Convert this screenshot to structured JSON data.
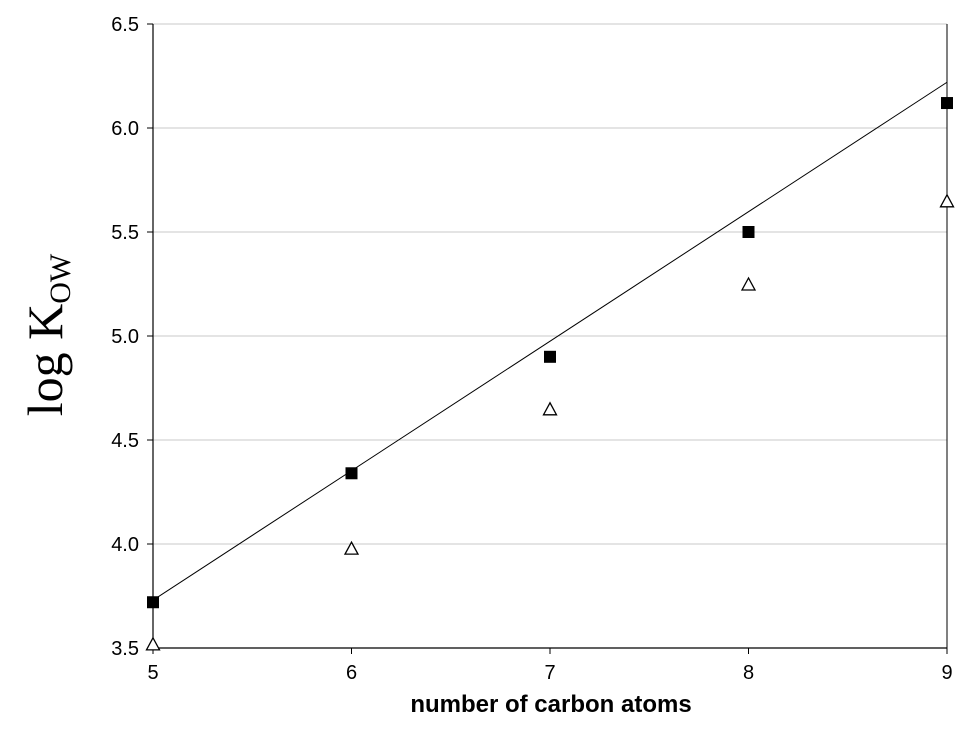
{
  "chart_data": {
    "type": "scatter",
    "xlabel": "number of carbon atoms",
    "ylabel": {
      "main": "log K",
      "subscript": "OW"
    },
    "xlim": [
      5,
      9
    ],
    "ylim": [
      3.5,
      6.5
    ],
    "x_ticks": [
      "5",
      "6",
      "7",
      "8",
      "9"
    ],
    "y_ticks": [
      "3.5",
      "4.0",
      "4.5",
      "5.0",
      "5.5",
      "6.0",
      "6.5"
    ],
    "grid": "horizontal",
    "series": [
      {
        "marker": "filled-square",
        "color": "#000000",
        "x": [
          5,
          6,
          7,
          8,
          9
        ],
        "y": [
          3.72,
          4.34,
          4.9,
          5.5,
          6.12
        ]
      },
      {
        "marker": "open-triangle",
        "color": "#000000",
        "x": [
          5,
          6,
          7,
          8,
          9
        ],
        "y": [
          3.52,
          3.98,
          4.65,
          5.25,
          5.65
        ]
      }
    ],
    "trendline": {
      "x": [
        5,
        9
      ],
      "y": [
        3.73,
        6.22
      ]
    }
  }
}
